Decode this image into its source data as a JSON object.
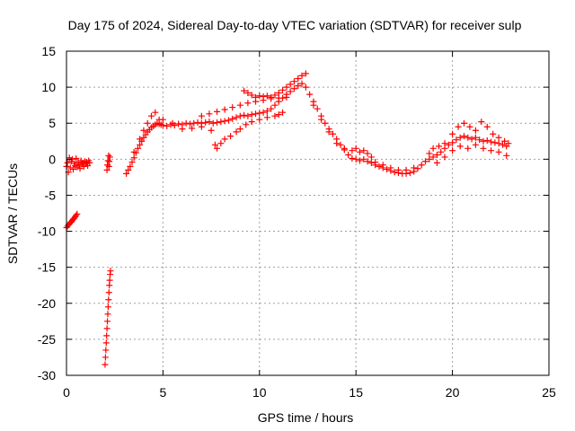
{
  "chart_data": {
    "type": "scatter",
    "title": "Day 175 of 2024, Sidereal Day-to-day VTEC variation (SDTVAR) for receiver sulp",
    "xlabel": "GPS time / hours",
    "ylabel": "SDTVAR / TECUs",
    "xlim": [
      0,
      25
    ],
    "ylim": [
      -30,
      15
    ],
    "xticks": [
      0,
      5,
      10,
      15,
      20,
      25
    ],
    "yticks": [
      -30,
      -25,
      -20,
      -15,
      -10,
      -5,
      0,
      5,
      10,
      15
    ],
    "grid": true,
    "marker": "+",
    "color": "#ff0000",
    "series": [
      {
        "name": "SDTVAR",
        "points": [
          [
            0.0,
            -1.0
          ],
          [
            0.05,
            -0.5
          ],
          [
            0.1,
            -1.8
          ],
          [
            0.15,
            0.2
          ],
          [
            0.2,
            -1.2
          ],
          [
            0.25,
            -0.3
          ],
          [
            0.3,
            0.0
          ],
          [
            0.35,
            -1.4
          ],
          [
            0.4,
            -0.6
          ],
          [
            0.45,
            -0.9
          ],
          [
            0.5,
            0.1
          ],
          [
            0.55,
            -1.1
          ],
          [
            0.6,
            -0.4
          ],
          [
            0.65,
            -0.8
          ],
          [
            0.7,
            -1.3
          ],
          [
            0.75,
            -0.2
          ],
          [
            0.8,
            -0.7
          ],
          [
            0.85,
            -0.5
          ],
          [
            0.9,
            -1.0
          ],
          [
            0.95,
            -0.3
          ],
          [
            1.0,
            -0.6
          ],
          [
            1.05,
            -0.4
          ],
          [
            1.1,
            -0.9
          ],
          [
            1.15,
            -0.2
          ],
          [
            1.2,
            -0.5
          ],
          [
            0.0,
            -9.5
          ],
          [
            0.05,
            -9.3
          ],
          [
            0.1,
            -9.1
          ],
          [
            0.15,
            -9.0
          ],
          [
            0.2,
            -8.8
          ],
          [
            0.25,
            -8.7
          ],
          [
            0.3,
            -8.5
          ],
          [
            0.35,
            -8.3
          ],
          [
            0.4,
            -8.2
          ],
          [
            0.45,
            -8.0
          ],
          [
            0.5,
            -7.8
          ],
          [
            0.55,
            -7.6
          ],
          [
            2.0,
            -28.5
          ],
          [
            2.02,
            -27.5
          ],
          [
            2.04,
            -26.5
          ],
          [
            2.06,
            -25.5
          ],
          [
            2.08,
            -24.5
          ],
          [
            2.1,
            -23.5
          ],
          [
            2.12,
            -22.5
          ],
          [
            2.14,
            -21.5
          ],
          [
            2.16,
            -20.5
          ],
          [
            2.18,
            -19.5
          ],
          [
            2.2,
            -18.5
          ],
          [
            2.22,
            -17.5
          ],
          [
            2.24,
            -16.8
          ],
          [
            2.26,
            -16.0
          ],
          [
            2.28,
            -15.5
          ],
          [
            2.1,
            -1.5
          ],
          [
            2.12,
            -0.8
          ],
          [
            2.15,
            -0.2
          ],
          [
            2.18,
            0.5
          ],
          [
            2.2,
            -1.0
          ],
          [
            2.22,
            -0.3
          ],
          [
            2.25,
            0.3
          ],
          [
            3.1,
            -2.0
          ],
          [
            3.2,
            -1.5
          ],
          [
            3.3,
            -1.0
          ],
          [
            3.4,
            -0.4
          ],
          [
            3.5,
            0.2
          ],
          [
            3.6,
            0.9
          ],
          [
            3.7,
            1.5
          ],
          [
            3.8,
            2.0
          ],
          [
            3.9,
            2.5
          ],
          [
            4.0,
            3.0
          ],
          [
            4.1,
            3.4
          ],
          [
            4.2,
            3.8
          ],
          [
            4.3,
            4.1
          ],
          [
            4.4,
            4.4
          ],
          [
            4.5,
            4.6
          ],
          [
            4.6,
            4.8
          ],
          [
            4.7,
            5.0
          ],
          [
            4.8,
            4.9
          ],
          [
            4.9,
            4.8
          ],
          [
            5.0,
            4.7
          ],
          [
            5.2,
            4.6
          ],
          [
            5.4,
            4.8
          ],
          [
            5.6,
            4.7
          ],
          [
            5.8,
            4.9
          ],
          [
            6.0,
            4.8
          ],
          [
            6.2,
            5.0
          ],
          [
            6.4,
            4.9
          ],
          [
            6.6,
            5.0
          ],
          [
            6.8,
            5.1
          ],
          [
            7.0,
            5.0
          ],
          [
            7.2,
            5.1
          ],
          [
            7.4,
            5.2
          ],
          [
            7.6,
            5.0
          ],
          [
            7.8,
            5.1
          ],
          [
            8.0,
            5.2
          ],
          [
            8.2,
            5.3
          ],
          [
            8.4,
            5.4
          ],
          [
            8.6,
            5.6
          ],
          [
            8.8,
            5.8
          ],
          [
            9.0,
            6.0
          ],
          [
            9.2,
            6.1
          ],
          [
            9.4,
            6.0
          ],
          [
            9.6,
            6.2
          ],
          [
            9.8,
            6.3
          ],
          [
            10.0,
            6.4
          ],
          [
            10.2,
            6.5
          ],
          [
            10.4,
            6.7
          ],
          [
            10.6,
            7.0
          ],
          [
            10.8,
            7.5
          ],
          [
            11.0,
            8.0
          ],
          [
            11.2,
            8.5
          ],
          [
            11.4,
            9.0
          ],
          [
            11.6,
            9.4
          ],
          [
            11.8,
            9.8
          ],
          [
            12.0,
            10.2
          ],
          [
            12.2,
            10.5
          ],
          [
            12.4,
            10.0
          ],
          [
            12.6,
            9.0
          ],
          [
            12.8,
            8.0
          ],
          [
            13.0,
            7.0
          ],
          [
            13.2,
            6.0
          ],
          [
            13.4,
            5.0
          ],
          [
            13.6,
            4.2
          ],
          [
            13.8,
            3.5
          ],
          [
            14.0,
            2.8
          ],
          [
            14.2,
            2.0
          ],
          [
            14.4,
            1.3
          ],
          [
            14.6,
            0.6
          ],
          [
            14.8,
            0.1
          ],
          [
            15.0,
            0.0
          ],
          [
            15.2,
            -0.2
          ],
          [
            15.4,
            0.0
          ],
          [
            15.6,
            -0.3
          ],
          [
            15.8,
            -0.5
          ],
          [
            16.0,
            -0.8
          ],
          [
            16.2,
            -1.0
          ],
          [
            16.4,
            -1.2
          ],
          [
            16.6,
            -1.4
          ],
          [
            16.8,
            -1.6
          ],
          [
            17.0,
            -1.8
          ],
          [
            17.2,
            -1.9
          ],
          [
            17.4,
            -2.0
          ],
          [
            17.6,
            -2.0
          ],
          [
            17.8,
            -1.9
          ],
          [
            18.0,
            -1.7
          ],
          [
            18.2,
            -1.3
          ],
          [
            18.4,
            -0.8
          ],
          [
            18.6,
            -0.3
          ],
          [
            18.8,
            0.0
          ],
          [
            19.0,
            0.3
          ],
          [
            19.2,
            0.6
          ],
          [
            19.4,
            1.0
          ],
          [
            19.6,
            1.5
          ],
          [
            19.8,
            2.0
          ],
          [
            20.0,
            2.3
          ],
          [
            20.2,
            2.7
          ],
          [
            20.4,
            3.0
          ],
          [
            20.6,
            3.2
          ],
          [
            20.8,
            3.0
          ],
          [
            21.0,
            2.8
          ],
          [
            21.2,
            3.0
          ],
          [
            21.4,
            2.7
          ],
          [
            21.6,
            2.5
          ],
          [
            21.8,
            2.6
          ],
          [
            22.0,
            2.4
          ],
          [
            22.2,
            2.3
          ],
          [
            22.4,
            2.2
          ],
          [
            22.6,
            2.0
          ],
          [
            22.8,
            1.8
          ],
          [
            3.5,
            1.0
          ],
          [
            3.8,
            2.8
          ],
          [
            4.0,
            4.0
          ],
          [
            4.2,
            5.0
          ],
          [
            4.4,
            6.0
          ],
          [
            4.6,
            6.5
          ],
          [
            4.8,
            5.5
          ],
          [
            5.0,
            5.5
          ],
          [
            5.5,
            5.0
          ],
          [
            6.0,
            4.2
          ],
          [
            6.5,
            4.3
          ],
          [
            7.0,
            4.5
          ],
          [
            7.5,
            4.0
          ],
          [
            7.7,
            2.0
          ],
          [
            7.8,
            1.5
          ],
          [
            8.0,
            2.2
          ],
          [
            8.2,
            2.8
          ],
          [
            8.5,
            3.2
          ],
          [
            8.8,
            3.8
          ],
          [
            9.0,
            4.2
          ],
          [
            9.3,
            4.8
          ],
          [
            9.6,
            5.2
          ],
          [
            10.0,
            5.5
          ],
          [
            10.4,
            5.8
          ],
          [
            10.8,
            6.0
          ],
          [
            11.0,
            6.2
          ],
          [
            11.2,
            6.5
          ],
          [
            7.0,
            6.0
          ],
          [
            7.4,
            6.3
          ],
          [
            7.8,
            6.6
          ],
          [
            8.2,
            6.9
          ],
          [
            8.6,
            7.2
          ],
          [
            9.0,
            7.5
          ],
          [
            9.4,
            7.8
          ],
          [
            9.8,
            8.0
          ],
          [
            10.2,
            8.2
          ],
          [
            10.6,
            8.4
          ],
          [
            11.0,
            8.5
          ],
          [
            11.4,
            8.6
          ],
          [
            9.2,
            9.5
          ],
          [
            9.4,
            9.2
          ],
          [
            9.6,
            8.9
          ],
          [
            9.8,
            8.6
          ],
          [
            10.0,
            8.8
          ],
          [
            10.2,
            8.7
          ],
          [
            10.4,
            8.8
          ],
          [
            10.6,
            8.6
          ],
          [
            10.8,
            8.9
          ],
          [
            11.0,
            9.2
          ],
          [
            11.2,
            9.6
          ],
          [
            11.4,
            10.0
          ],
          [
            11.6,
            10.4
          ],
          [
            11.8,
            10.8
          ],
          [
            12.0,
            11.2
          ],
          [
            12.2,
            11.6
          ],
          [
            12.4,
            11.9
          ],
          [
            12.8,
            7.5
          ],
          [
            13.2,
            5.5
          ],
          [
            13.6,
            3.8
          ],
          [
            14.0,
            2.2
          ],
          [
            14.4,
            1.5
          ],
          [
            14.8,
            1.2
          ],
          [
            15.0,
            1.5
          ],
          [
            15.2,
            1.0
          ],
          [
            15.4,
            1.2
          ],
          [
            15.6,
            0.8
          ],
          [
            15.8,
            0.3
          ],
          [
            16.0,
            -0.4
          ],
          [
            16.4,
            -0.8
          ],
          [
            16.8,
            -1.2
          ],
          [
            17.2,
            -1.5
          ],
          [
            17.6,
            -1.5
          ],
          [
            18.0,
            -1.2
          ],
          [
            19.0,
            1.5
          ],
          [
            19.3,
            1.8
          ],
          [
            19.6,
            2.2
          ],
          [
            20.0,
            3.5
          ],
          [
            20.3,
            4.5
          ],
          [
            20.6,
            5.0
          ],
          [
            20.9,
            4.5
          ],
          [
            21.2,
            4.0
          ],
          [
            21.5,
            5.2
          ],
          [
            21.8,
            4.5
          ],
          [
            22.1,
            3.5
          ],
          [
            22.4,
            3.0
          ],
          [
            22.7,
            2.5
          ],
          [
            22.9,
            2.2
          ],
          [
            18.8,
            0.8
          ],
          [
            19.2,
            -0.5
          ],
          [
            19.6,
            0.3
          ],
          [
            20.0,
            1.2
          ],
          [
            20.4,
            1.8
          ],
          [
            20.8,
            1.5
          ],
          [
            21.2,
            2.0
          ],
          [
            21.6,
            1.5
          ],
          [
            22.0,
            1.2
          ],
          [
            22.4,
            1.0
          ],
          [
            22.8,
            0.5
          ]
        ]
      }
    ]
  }
}
